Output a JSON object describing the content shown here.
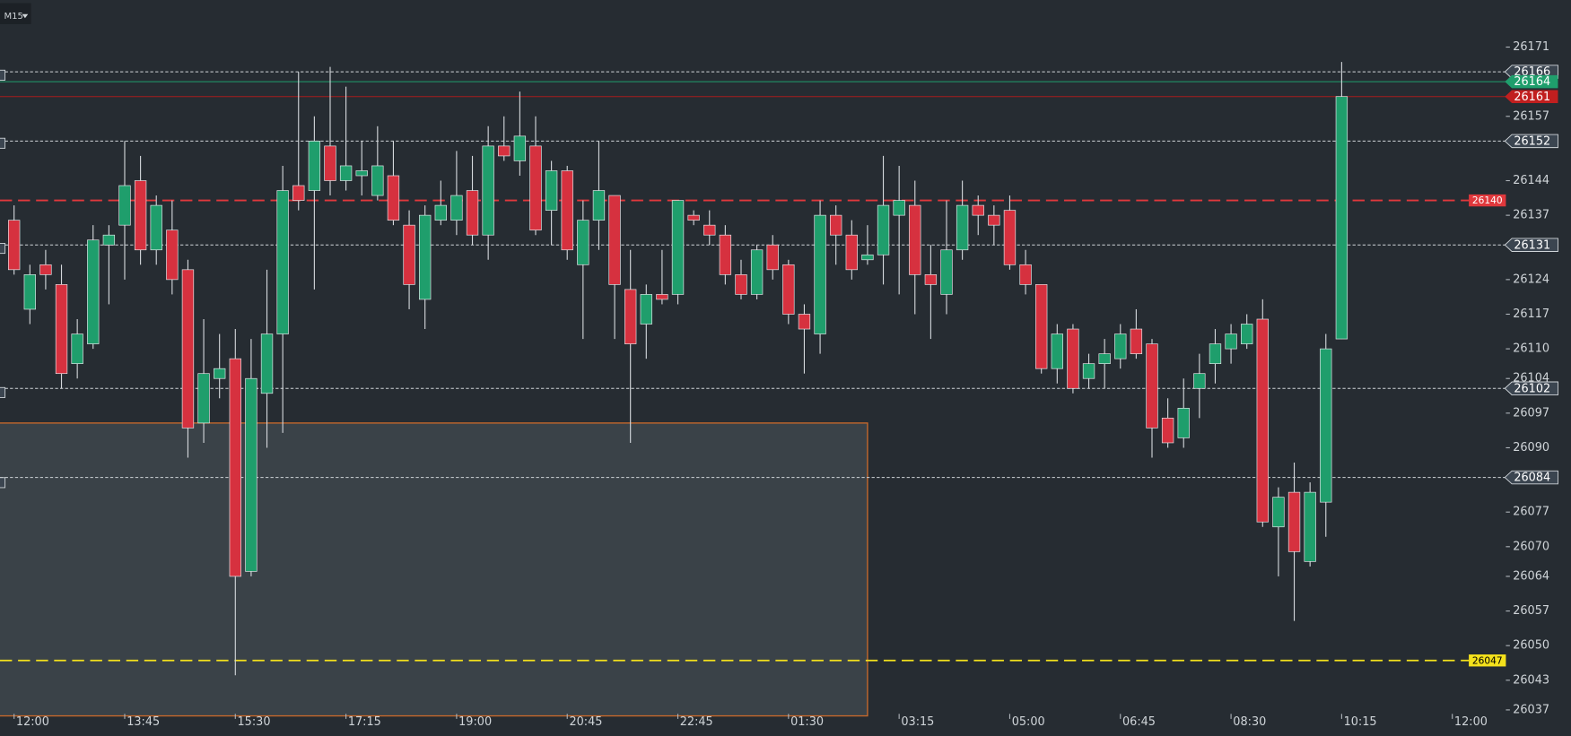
{
  "timeframe": "M15",
  "chart_data": {
    "type": "candlestick",
    "up_color": "#1f9e6c",
    "down_color": "#d6313f",
    "open": [
      26136,
      26118,
      26127,
      26123,
      26107,
      26111,
      26131,
      26135,
      26144,
      26130,
      26134,
      26126,
      26095,
      26104,
      26108,
      26065,
      26101,
      26113,
      26143,
      26142,
      26151,
      26144,
      26145,
      26141,
      26145,
      26135,
      26120,
      26136,
      26136,
      26142,
      26133,
      26151,
      26148,
      26151,
      26138,
      26146,
      26127,
      26136,
      26141,
      26122,
      26115,
      26121,
      26121,
      26137,
      26135,
      26133,
      26125,
      26121,
      26131,
      26127,
      26117,
      26113,
      26137,
      26133,
      26128,
      26129,
      26137,
      26139,
      26125,
      26121,
      26130,
      26139,
      26137,
      26138,
      26127,
      26123,
      26106,
      26114,
      26104,
      26107,
      26108,
      26114,
      26111,
      26096,
      26092,
      26102,
      26107,
      26110,
      26111,
      26116,
      26074,
      26081,
      26067,
      26079,
      26112
    ],
    "high": [
      26139,
      26127,
      26130,
      26127,
      26116,
      26135,
      26135,
      26152,
      26149,
      26141,
      26140,
      26128,
      26116,
      26113,
      26114,
      26112,
      26126,
      26147,
      26166,
      26157,
      26167,
      26163,
      26152,
      26155,
      26152,
      26138,
      26139,
      26144,
      26150,
      26149,
      26155,
      26157,
      26162,
      26157,
      26148,
      26147,
      26140,
      26152,
      26141,
      26130,
      26123,
      26130,
      26140,
      26138,
      26138,
      26135,
      26128,
      26131,
      26133,
      26128,
      26119,
      26140,
      26139,
      26136,
      26135,
      26149,
      26147,
      26144,
      26131,
      26140,
      26144,
      26141,
      26139,
      26141,
      26130,
      26123,
      26115,
      26115,
      26109,
      26112,
      26115,
      26118,
      26112,
      26100,
      26104,
      26109,
      26114,
      26115,
      26117,
      26120,
      26082,
      26087,
      26083,
      26113,
      26168
    ],
    "low": [
      26125,
      26115,
      26122,
      26102,
      26104,
      26110,
      26119,
      26124,
      26127,
      26127,
      26121,
      26088,
      26091,
      26100,
      26044,
      26064,
      26090,
      26093,
      26138,
      26122,
      26141,
      26142,
      26141,
      26140,
      26135,
      26118,
      26114,
      26135,
      26133,
      26131,
      26128,
      26148,
      26145,
      26133,
      26131,
      26128,
      26112,
      26130,
      26112,
      26091,
      26108,
      26119,
      26119,
      26135,
      26131,
      26123,
      26120,
      26120,
      26124,
      26115,
      26105,
      26109,
      26127,
      26124,
      26127,
      26123,
      26121,
      26117,
      26112,
      26117,
      26128,
      26133,
      26131,
      26126,
      26121,
      26105,
      26103,
      26101,
      26102,
      26102,
      26106,
      26108,
      26088,
      26090,
      26090,
      26096,
      26103,
      26107,
      26110,
      26074,
      26064,
      26055,
      26066,
      26072,
      26112
    ],
    "close": [
      26126,
      26125,
      26125,
      26105,
      26113,
      26132,
      26133,
      26143,
      26130,
      26139,
      26124,
      26094,
      26105,
      26106,
      26064,
      26104,
      26113,
      26142,
      26140,
      26152,
      26144,
      26147,
      26146,
      26147,
      26136,
      26123,
      26137,
      26139,
      26141,
      26133,
      26151,
      26149,
      26153,
      26134,
      26146,
      26130,
      26136,
      26142,
      26123,
      26111,
      26121,
      26120,
      26140,
      26136,
      26133,
      26125,
      26121,
      26130,
      26126,
      26117,
      26114,
      26137,
      26133,
      26126,
      26129,
      26139,
      26140,
      26125,
      26123,
      26130,
      26139,
      26137,
      26135,
      26127,
      26123,
      26106,
      26113,
      26102,
      26107,
      26109,
      26113,
      26109,
      26094,
      26091,
      26098,
      26105,
      26111,
      26113,
      26115,
      26075,
      26080,
      26069,
      26081,
      26110,
      26161
    ],
    "xlim": [
      -0.89,
      94.2
    ],
    "xticks": [
      {
        "value": 0,
        "label": "12:00"
      },
      {
        "value": 7,
        "label": "13:45"
      },
      {
        "value": 14,
        "label": "15:30"
      },
      {
        "value": 21,
        "label": "17:15"
      },
      {
        "value": 28,
        "label": "19:00"
      },
      {
        "value": 35,
        "label": "20:45"
      },
      {
        "value": 42,
        "label": "22:45"
      },
      {
        "value": 49,
        "label": "01:30"
      },
      {
        "value": 56,
        "label": "03:15"
      },
      {
        "value": 63,
        "label": "05:00"
      },
      {
        "value": 70,
        "label": "06:45"
      },
      {
        "value": 77,
        "label": "08:30"
      },
      {
        "value": 84,
        "label": "10:15"
      },
      {
        "value": 91,
        "label": "12:00"
      }
    ],
    "ylim": [
      26036.2,
      26180.5
    ],
    "yticks": [
      26171,
      26157,
      26144,
      26137,
      26124,
      26117,
      26110,
      26104,
      26097,
      26090,
      26077,
      26070,
      26064,
      26057,
      26050,
      26043,
      26037
    ],
    "levels": [
      {
        "value": 26166,
        "color": "#cfd4d8",
        "style": "dotted",
        "tag": "arrow",
        "tag_fill": "#3b4550",
        "text_color": "#ffffff"
      },
      {
        "value": 26164,
        "color": "#1f9e6c",
        "style": "solid",
        "tag": "arrow",
        "tag_fill": "#1f9e6c",
        "text_color": "#ffffff"
      },
      {
        "value": 26161,
        "color": "#a51d1d",
        "style": "solid",
        "tag": "arrow",
        "tag_fill": "#c11f1f",
        "text_color": "#ffffff"
      },
      {
        "value": 26152,
        "color": "#cfd4d8",
        "style": "dotted",
        "tag": "arrow",
        "tag_fill": "#3b4550",
        "text_color": "#ffffff"
      },
      {
        "value": 26140,
        "color": "#e0383c",
        "style": "dashed",
        "tag": "box",
        "tag_fill": "#e0383c",
        "text_color": "#ffffff"
      },
      {
        "value": 26131,
        "color": "#cfd4d8",
        "style": "dotted",
        "tag": "arrow",
        "tag_fill": "#3b4550",
        "text_color": "#ffffff"
      },
      {
        "value": 26102,
        "color": "#cfd4d8",
        "style": "dotted",
        "tag": "arrow",
        "tag_fill": "#3b4550",
        "text_color": "#ffffff"
      },
      {
        "value": 26084,
        "color": "#cfd4d8",
        "style": "dotted",
        "tag": "arrow",
        "tag_fill": "#3b4550",
        "text_color": "#ffffff"
      },
      {
        "value": 26047,
        "color": "#f4e11c",
        "style": "dashed",
        "tag": "box",
        "tag_fill": "#f4e11c",
        "text_color": "#000000"
      }
    ],
    "zone": {
      "x_end": 54,
      "top": 26095,
      "fill": "#3a4248",
      "color": "#c8692c"
    }
  }
}
